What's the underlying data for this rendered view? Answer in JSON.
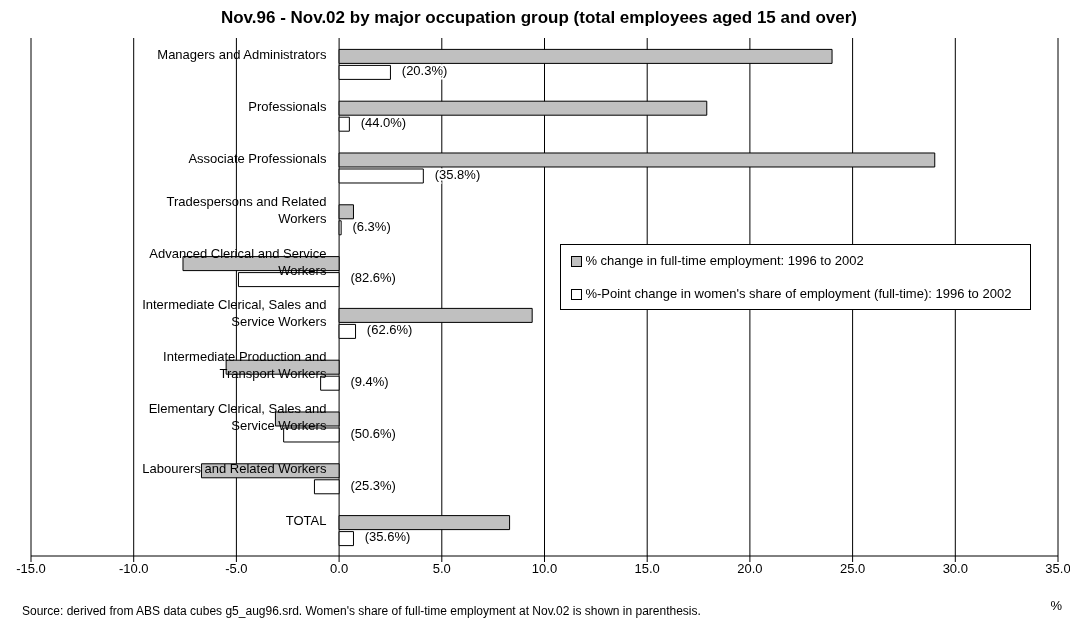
{
  "chart_data": {
    "type": "bar",
    "orientation": "horizontal",
    "title": "Nov.96 - Nov.02 by major occupation group (total employees aged 15 and over)",
    "categories": [
      "Managers and Administrators",
      "Professionals",
      "Associate Professionals",
      "Tradespersons and Related Workers",
      "Advanced Clerical and Service Workers",
      "Intermediate Clerical, Sales and Service Workers",
      "Intermediate Production and Transport Workers",
      "Elementary Clerical, Sales and Service Workers",
      "Labourers and Related Workers",
      "TOTAL"
    ],
    "series": [
      {
        "name": "% change in full-time employment: 1996 to 2002",
        "color": "#c0c0c0",
        "values": [
          24.0,
          17.9,
          29.0,
          0.7,
          -7.6,
          9.4,
          -5.5,
          -3.1,
          -6.7,
          8.3
        ]
      },
      {
        "name": "%-Point change in women's share of employment (full-time): 1996 to 2002",
        "color": "#ffffff",
        "values": [
          2.5,
          0.5,
          4.1,
          0.1,
          -4.9,
          0.8,
          -0.9,
          -2.7,
          -1.2,
          0.7
        ]
      }
    ],
    "xlim": [
      -15,
      35
    ],
    "xticks": [
      {
        "value": -15,
        "label": "-15.0"
      },
      {
        "value": -10,
        "label": "-10.0"
      },
      {
        "value": -5,
        "label": "-5.0"
      },
      {
        "value": 0,
        "label": "0.0"
      },
      {
        "value": 5,
        "label": "5.0"
      },
      {
        "value": 10,
        "label": "10.0"
      },
      {
        "value": 15,
        "label": "15.0"
      },
      {
        "value": 20,
        "label": "20.0"
      },
      {
        "value": 25,
        "label": "25.0"
      },
      {
        "value": 30,
        "label": "30.0"
      },
      {
        "value": 35,
        "label": "35.0"
      }
    ],
    "grid": "x",
    "legend": "right",
    "annotations": [
      "(20.3%)",
      "(44.0%)",
      "(35.8%)",
      "(6.3%)",
      "(82.6%)",
      "(62.6%)",
      "(9.4%)",
      "(50.6%)",
      "(25.3%)",
      "(35.6%)",
      "Source: derived from ABS data cubes g5_aug96.srd. Women's share of full-time employment at Nov.02 is shown in parenthesis.",
      "%"
    ]
  }
}
